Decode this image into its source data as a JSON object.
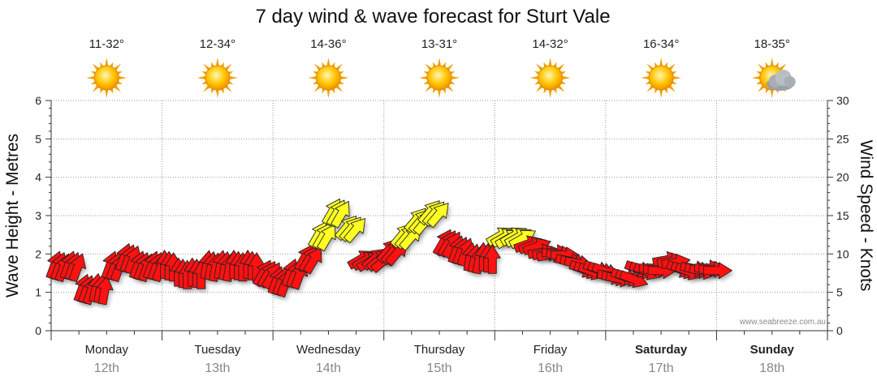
{
  "chart_data": {
    "type": "line",
    "title": "7 day wind & wave forecast for Sturt Vale",
    "ylabel_left": "Wave Height - Metres",
    "ylabel_right": "Wind Speed - Knots",
    "ylim_left": [
      0,
      6
    ],
    "ylim_right": [
      0,
      30
    ],
    "y_ticks_left": [
      "0",
      "1",
      "2",
      "3",
      "4",
      "5",
      "6"
    ],
    "y_ticks_right": [
      "0",
      "5",
      "10",
      "15",
      "20",
      "25",
      "30"
    ],
    "grid": true,
    "watermark": "www.seabreeze.com.au",
    "days": [
      {
        "name": "Monday",
        "date": "12th",
        "temp": "11-32°",
        "weather": "sunny",
        "bold": false
      },
      {
        "name": "Tuesday",
        "date": "13th",
        "temp": "12-34°",
        "weather": "sunny",
        "bold": false
      },
      {
        "name": "Wednesday",
        "date": "14th",
        "temp": "14-36°",
        "weather": "sunny",
        "bold": false
      },
      {
        "name": "Thursday",
        "date": "15th",
        "temp": "13-31°",
        "weather": "sunny",
        "bold": false
      },
      {
        "name": "Friday",
        "date": "16th",
        "temp": "14-32°",
        "weather": "sunny",
        "bold": false
      },
      {
        "name": "Saturday",
        "date": "17th",
        "temp": "16-34°",
        "weather": "sunny",
        "bold": true
      },
      {
        "name": "Sunday",
        "date": "18th",
        "temp": "18-35°",
        "weather": "partly-cloudy",
        "bold": true
      }
    ],
    "series": [
      {
        "name": "Wind Speed (knots)",
        "step_hours": 3,
        "values": [
          8,
          8,
          5,
          5,
          8,
          9,
          8,
          8,
          8,
          7,
          7,
          8,
          8,
          8,
          8,
          7,
          6,
          7,
          9,
          12,
          15,
          13,
          9,
          9,
          10,
          12,
          14,
          15,
          11,
          10,
          9,
          9,
          12,
          12,
          11,
          10,
          10,
          9,
          8,
          8,
          7,
          7,
          8,
          8,
          9,
          8,
          8,
          8
        ],
        "direction_deg": [
          200,
          200,
          200,
          190,
          200,
          200,
          200,
          200,
          180,
          180,
          180,
          190,
          190,
          180,
          180,
          210,
          200,
          200,
          210,
          210,
          210,
          220,
          240,
          230,
          220,
          220,
          220,
          220,
          210,
          200,
          190,
          180,
          240,
          240,
          250,
          260,
          270,
          280,
          290,
          290,
          280,
          290,
          290,
          270,
          260,
          290,
          280,
          270
        ],
        "colors_legend": {
          "under_10_to_12": "#ff0000",
          "12_to_20": "#ffff00"
        }
      }
    ],
    "colors": {
      "strong": "#ff1111",
      "moderate": "#ffff22",
      "sun": "#ffb000",
      "grid": "#999999"
    }
  }
}
